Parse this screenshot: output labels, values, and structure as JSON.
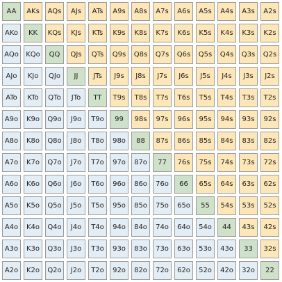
{
  "colors": {
    "pair": "#cfe1c8",
    "suited": "#fde6b7",
    "offsuit": "#e3edf6"
  },
  "hand_grid": {
    "ranks": [
      "A",
      "K",
      "Q",
      "J",
      "T",
      "9",
      "8",
      "7",
      "6",
      "5",
      "4",
      "3",
      "2"
    ],
    "rows": [
      [
        "AA",
        "AKs",
        "AQs",
        "AJs",
        "ATs",
        "A9s",
        "A8s",
        "A7s",
        "A6s",
        "A5s",
        "A4s",
        "A3s",
        "A2s"
      ],
      [
        "AKo",
        "KK",
        "KQs",
        "KJs",
        "KTs",
        "K9s",
        "K8s",
        "K7s",
        "K6s",
        "K5s",
        "K4s",
        "K3s",
        "K2s"
      ],
      [
        "AQo",
        "KQo",
        "QQ",
        "QJs",
        "QTs",
        "Q9s",
        "Q8s",
        "Q7s",
        "Q6s",
        "Q5s",
        "Q4s",
        "Q3s",
        "Q2s"
      ],
      [
        "AJo",
        "KJo",
        "QJo",
        "JJ",
        "JTs",
        "J9s",
        "J8s",
        "J7s",
        "J6s",
        "J5s",
        "J4s",
        "J3s",
        "J2s"
      ],
      [
        "ATo",
        "KTo",
        "QTo",
        "JTo",
        "TT",
        "T9s",
        "T8s",
        "T7s",
        "T6s",
        "T5s",
        "T4s",
        "T3s",
        "T2s"
      ],
      [
        "A9o",
        "K9o",
        "Q9o",
        "J9o",
        "T9o",
        "99",
        "98s",
        "97s",
        "96s",
        "95s",
        "94s",
        "93s",
        "92s"
      ],
      [
        "A8o",
        "K8o",
        "Q8o",
        "J8o",
        "T8o",
        "98o",
        "88",
        "87s",
        "86s",
        "85s",
        "84s",
        "83s",
        "82s"
      ],
      [
        "A7o",
        "K7o",
        "Q7o",
        "J7o",
        "T7o",
        "97o",
        "87o",
        "77",
        "76s",
        "75s",
        "74s",
        "73s",
        "72s"
      ],
      [
        "A6o",
        "K6o",
        "Q6o",
        "J6o",
        "T6o",
        "96o",
        "86o",
        "76o",
        "66",
        "65s",
        "64s",
        "63s",
        "62s"
      ],
      [
        "A5o",
        "K5o",
        "Q5o",
        "J5o",
        "T5o",
        "95o",
        "85o",
        "75o",
        "65o",
        "55",
        "54s",
        "53s",
        "52s"
      ],
      [
        "A4o",
        "K4o",
        "Q4o",
        "J4o",
        "T4o",
        "94o",
        "84o",
        "74o",
        "64o",
        "54o",
        "44",
        "43s",
        "42s"
      ],
      [
        "A3o",
        "K3o",
        "Q3o",
        "J3o",
        "T3o",
        "93o",
        "83o",
        "73o",
        "63o",
        "53o",
        "43o",
        "33",
        "32s"
      ],
      [
        "A2o",
        "K2o",
        "Q2o",
        "J2o",
        "T2o",
        "92o",
        "82o",
        "72o",
        "62o",
        "52o",
        "42o",
        "32o",
        "22"
      ]
    ]
  }
}
